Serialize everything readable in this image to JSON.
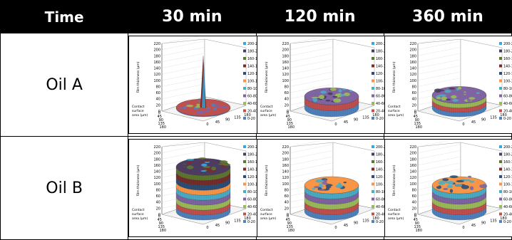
{
  "header": {
    "time_label": "Time",
    "columns": [
      "30 min",
      "120 min",
      "360 min"
    ]
  },
  "rows": [
    {
      "label": "Oil A"
    },
    {
      "label": "Oil B"
    }
  ],
  "axis_text": {
    "z_label": "Film thickness (μm)",
    "x_label_lines": [
      "Contact",
      "surface",
      "area (μm)"
    ]
  },
  "colors": {
    "0-20": "#4f81bd",
    "20-40": "#c0504d",
    "40-60": "#9bbb59",
    "60-80": "#8064a2",
    "80-100": "#4bacc6",
    "100-120": "#f79646",
    "120-140": "#2c4d75",
    "140-160": "#772c2a",
    "160-180": "#5f7530",
    "180-200": "#4d3b62",
    "200-220": "#35a8e0"
  },
  "chart_data": [
    {
      "type": "surface",
      "row": "Oil A",
      "time": "30 min",
      "zlabel": "Film thickness (μm)",
      "xlabel": "Contact surface area (μm)",
      "z_ticks": [
        0,
        20,
        40,
        60,
        80,
        100,
        120,
        140,
        160,
        180,
        200,
        220
      ],
      "x_ticks": [
        0,
        45,
        90,
        135,
        180
      ],
      "y_ticks": [
        0,
        45,
        90,
        135,
        180
      ],
      "legend": [
        "200-220",
        "180-200",
        "160-180",
        "140-160",
        "120-140",
        "100-120",
        "80-100",
        "60-80",
        "40-60",
        "20-40",
        "0-20"
      ],
      "level": 12,
      "top_band": "20-40",
      "spike": 210,
      "wall_color": "0-20"
    },
    {
      "type": "surface",
      "row": "Oil A",
      "time": "120 min",
      "zlabel": "Film thickness (μm)",
      "xlabel": "Contact surface area (μm)",
      "z_ticks": [
        0,
        20,
        40,
        60,
        80,
        100,
        120,
        140,
        160,
        180,
        200,
        220
      ],
      "x_ticks": [
        0,
        45,
        90,
        135,
        180
      ],
      "y_ticks": [
        0,
        45,
        90,
        135,
        180
      ],
      "legend": [
        "200-220",
        "180-200",
        "160-180",
        "140-160",
        "120-140",
        "100-120",
        "80-100",
        "60-80",
        "40-60",
        "20-40",
        "0-20"
      ],
      "level": 55,
      "top_band": "60-80",
      "wall_color": "striped"
    },
    {
      "type": "surface",
      "row": "Oil A",
      "time": "360 min",
      "zlabel": "Film thickness (μm)",
      "xlabel": "Contact surface area (μm)",
      "z_ticks": [
        0,
        20,
        40,
        60,
        80,
        100,
        120,
        140,
        160,
        180,
        200,
        220
      ],
      "x_ticks": [
        0,
        45,
        90,
        135,
        180
      ],
      "y_ticks": [
        0,
        45,
        90,
        135,
        180
      ],
      "legend": [
        "200-220",
        "180-200",
        "160-180",
        "140-160",
        "120-140",
        "100-120",
        "80-100",
        "60-80",
        "40-60",
        "20-40",
        "0-20"
      ],
      "level": 60,
      "top_band": "60-80",
      "wall_color": "striped"
    },
    {
      "type": "surface",
      "row": "Oil B",
      "time": "30 min",
      "zlabel": "Film thickness (μm)",
      "xlabel": "Contact surface area (μm)",
      "z_ticks": [
        0,
        20,
        40,
        60,
        80,
        100,
        120,
        140,
        160,
        180,
        200,
        220
      ],
      "x_ticks": [
        0,
        45,
        90,
        135,
        180
      ],
      "y_ticks": [
        0,
        45,
        90,
        135,
        180
      ],
      "legend": [
        "200-220",
        "180-200",
        "160-180",
        "140-160",
        "120-140",
        "100-120",
        "80-100",
        "60-80",
        "40-60",
        "20-40",
        "0-20"
      ],
      "level": 180,
      "top_band": "180-200",
      "wall_color": "striped"
    },
    {
      "type": "surface",
      "row": "Oil B",
      "time": "120 min",
      "zlabel": "Film thickness (μm)",
      "xlabel": "Contact surface area (μm)",
      "z_ticks": [
        0,
        20,
        40,
        60,
        80,
        100,
        120,
        140,
        160,
        180,
        200,
        220
      ],
      "x_ticks": [
        0,
        45,
        90,
        135,
        180
      ],
      "y_ticks": [
        0,
        45,
        90,
        135,
        180
      ],
      "legend": [
        "200-220",
        "180-200",
        "160-180",
        "140-160",
        "120-140",
        "100-120",
        "80-100",
        "60-80",
        "40-60",
        "20-40",
        "0-20"
      ],
      "level": 110,
      "top_band": "100-120",
      "wall_color": "striped"
    },
    {
      "type": "surface",
      "row": "Oil B",
      "time": "360 min",
      "zlabel": "Film thickness (μm)",
      "xlabel": "Contact surface area (μm)",
      "z_ticks": [
        0,
        20,
        40,
        60,
        80,
        100,
        120,
        140,
        160,
        180,
        200,
        220
      ],
      "x_ticks": [
        0,
        45,
        90,
        135,
        180
      ],
      "y_ticks": [
        0,
        45,
        90,
        135,
        180
      ],
      "legend": [
        "200-220",
        "180-200",
        "160-180",
        "140-160",
        "120-140",
        "100-120",
        "80-100",
        "60-80",
        "40-60",
        "20-40",
        "0-20"
      ],
      "level": 110,
      "top_band": "100-120",
      "wall_color": "striped"
    }
  ]
}
